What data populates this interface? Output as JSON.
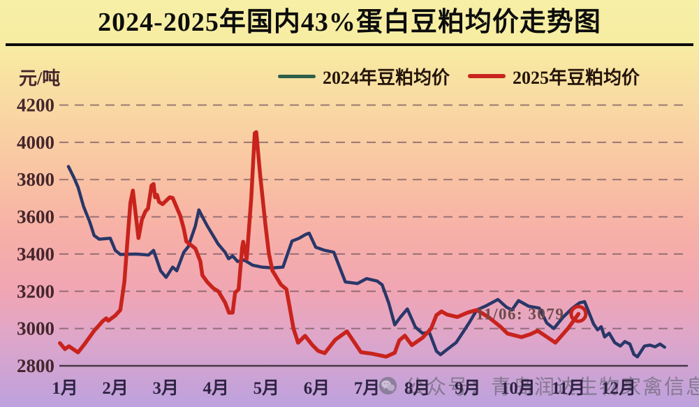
{
  "title": "2024-2025年国内43%蛋白豆粕均价走势图",
  "y_axis_unit": "元/吨",
  "legend": [
    {
      "label": "2024年豆粕均价",
      "color": "#2d5f4b"
    },
    {
      "label": "2025年豆粕均价",
      "color": "#c8231d"
    }
  ],
  "watermark": {
    "icon": "wechat-icon",
    "text": "公众号：青岛润达生物家禽信息"
  },
  "chart_data": {
    "type": "line",
    "title": "2024-2025年国内43%蛋白豆粕均价走势图",
    "ylabel": "元/吨",
    "ylim": [
      2800,
      4200
    ],
    "y_ticks": [
      2800,
      3000,
      3200,
      3400,
      3600,
      3800,
      4000,
      4200
    ],
    "categories": [
      "1月",
      "2月",
      "3月",
      "4月",
      "5月",
      "6月",
      "7月",
      "8月",
      "9月",
      "10月",
      "11月",
      "12月"
    ],
    "x_unit": "month index (1 = Jan 1, 13 = Dec 31)",
    "grid": "horizontal dashed",
    "legend_position": "top",
    "annotation": {
      "text": "11/06: 3079",
      "date": "11/06",
      "value": 3079
    },
    "series": [
      {
        "name": "2024年豆粕均价",
        "color": "#293768",
        "points": [
          [
            1.07,
            3870
          ],
          [
            1.17,
            3815
          ],
          [
            1.26,
            3760
          ],
          [
            1.37,
            3655
          ],
          [
            1.49,
            3575
          ],
          [
            1.58,
            3500
          ],
          [
            1.68,
            3480
          ],
          [
            1.9,
            3485
          ],
          [
            2.0,
            3420
          ],
          [
            2.1,
            3398
          ],
          [
            2.41,
            3400
          ],
          [
            2.66,
            3395
          ],
          [
            2.76,
            3420
          ],
          [
            2.9,
            3310
          ],
          [
            3.01,
            3275
          ],
          [
            3.14,
            3330
          ],
          [
            3.22,
            3310
          ],
          [
            3.36,
            3410
          ],
          [
            3.45,
            3440
          ],
          [
            3.59,
            3550
          ],
          [
            3.66,
            3637
          ],
          [
            3.76,
            3585
          ],
          [
            3.83,
            3550
          ],
          [
            3.97,
            3487
          ],
          [
            4.04,
            3455
          ],
          [
            4.18,
            3410
          ],
          [
            4.25,
            3375
          ],
          [
            4.33,
            3390
          ],
          [
            4.43,
            3360
          ],
          [
            4.56,
            3368
          ],
          [
            4.73,
            3340
          ],
          [
            4.91,
            3330
          ],
          [
            5.12,
            3326
          ],
          [
            5.33,
            3330
          ],
          [
            5.51,
            3470
          ],
          [
            5.65,
            3485
          ],
          [
            5.78,
            3505
          ],
          [
            5.85,
            3512
          ],
          [
            5.98,
            3437
          ],
          [
            6.16,
            3420
          ],
          [
            6.34,
            3410
          ],
          [
            6.57,
            3250
          ],
          [
            6.81,
            3242
          ],
          [
            6.99,
            3268
          ],
          [
            7.2,
            3255
          ],
          [
            7.3,
            3235
          ],
          [
            7.43,
            3138
          ],
          [
            7.55,
            3020
          ],
          [
            7.66,
            3060
          ],
          [
            7.8,
            3105
          ],
          [
            7.96,
            3008
          ],
          [
            8.1,
            2975
          ],
          [
            8.24,
            2978
          ],
          [
            8.38,
            2878
          ],
          [
            8.46,
            2860
          ],
          [
            8.6,
            2890
          ],
          [
            8.77,
            2925
          ],
          [
            8.93,
            2990
          ],
          [
            9.04,
            3036
          ],
          [
            9.18,
            3100
          ],
          [
            9.35,
            3120
          ],
          [
            9.6,
            3156
          ],
          [
            9.77,
            3115
          ],
          [
            9.88,
            3100
          ],
          [
            10.01,
            3150
          ],
          [
            10.21,
            3120
          ],
          [
            10.42,
            3110
          ],
          [
            10.57,
            3030
          ],
          [
            10.71,
            3000
          ],
          [
            10.89,
            3060
          ],
          [
            11.08,
            3110
          ],
          [
            11.22,
            3138
          ],
          [
            11.32,
            3145
          ],
          [
            11.5,
            3025
          ],
          [
            11.58,
            2993
          ],
          [
            11.65,
            3010
          ],
          [
            11.72,
            2955
          ],
          [
            11.81,
            2975
          ],
          [
            11.92,
            2925
          ],
          [
            12.03,
            2906
          ],
          [
            12.12,
            2930
          ],
          [
            12.22,
            2917
          ],
          [
            12.3,
            2862
          ],
          [
            12.37,
            2848
          ],
          [
            12.51,
            2906
          ],
          [
            12.62,
            2911
          ],
          [
            12.72,
            2902
          ],
          [
            12.82,
            2917
          ],
          [
            12.91,
            2900
          ]
        ]
      },
      {
        "name": "2025年豆粕均价",
        "color": "#c8231d",
        "points": [
          [
            0.9,
            2922
          ],
          [
            1.0,
            2890
          ],
          [
            1.08,
            2905
          ],
          [
            1.26,
            2872
          ],
          [
            1.4,
            2920
          ],
          [
            1.58,
            2988
          ],
          [
            1.75,
            3040
          ],
          [
            1.82,
            3055
          ],
          [
            1.86,
            3042
          ],
          [
            2.0,
            3070
          ],
          [
            2.1,
            3100
          ],
          [
            2.18,
            3250
          ],
          [
            2.25,
            3500
          ],
          [
            2.3,
            3674
          ],
          [
            2.35,
            3741
          ],
          [
            2.39,
            3649
          ],
          [
            2.46,
            3486
          ],
          [
            2.53,
            3586
          ],
          [
            2.6,
            3630
          ],
          [
            2.65,
            3645
          ],
          [
            2.72,
            3768
          ],
          [
            2.76,
            3776
          ],
          [
            2.79,
            3705
          ],
          [
            2.83,
            3718
          ],
          [
            2.87,
            3680
          ],
          [
            2.94,
            3668
          ],
          [
            3.08,
            3705
          ],
          [
            3.14,
            3701
          ],
          [
            3.29,
            3606
          ],
          [
            3.36,
            3536
          ],
          [
            3.41,
            3468
          ],
          [
            3.5,
            3449
          ],
          [
            3.59,
            3430
          ],
          [
            3.69,
            3361
          ],
          [
            3.73,
            3286
          ],
          [
            3.83,
            3249
          ],
          [
            3.94,
            3218
          ],
          [
            4.05,
            3199
          ],
          [
            4.18,
            3140
          ],
          [
            4.26,
            3085
          ],
          [
            4.33,
            3086
          ],
          [
            4.38,
            3193
          ],
          [
            4.45,
            3211
          ],
          [
            4.52,
            3436
          ],
          [
            4.54,
            3466
          ],
          [
            4.61,
            3374
          ],
          [
            4.7,
            3700
          ],
          [
            4.77,
            4049
          ],
          [
            4.8,
            4055
          ],
          [
            4.88,
            3819
          ],
          [
            4.98,
            3561
          ],
          [
            5.05,
            3404
          ],
          [
            5.12,
            3311
          ],
          [
            5.29,
            3236
          ],
          [
            5.4,
            3211
          ],
          [
            5.54,
            3000
          ],
          [
            5.63,
            2924
          ],
          [
            5.77,
            2961
          ],
          [
            5.91,
            2913
          ],
          [
            6.03,
            2880
          ],
          [
            6.16,
            2868
          ],
          [
            6.37,
            2940
          ],
          [
            6.6,
            2985
          ],
          [
            6.88,
            2873
          ],
          [
            7.1,
            2865
          ],
          [
            7.38,
            2849
          ],
          [
            7.55,
            2870
          ],
          [
            7.64,
            2936
          ],
          [
            7.75,
            2962
          ],
          [
            7.89,
            2911
          ],
          [
            8.1,
            2950
          ],
          [
            8.27,
            2999
          ],
          [
            8.38,
            3073
          ],
          [
            8.48,
            3092
          ],
          [
            8.59,
            3075
          ],
          [
            8.79,
            3062
          ],
          [
            9.0,
            3086
          ],
          [
            9.18,
            3100
          ],
          [
            9.42,
            3060
          ],
          [
            9.65,
            3010
          ],
          [
            9.79,
            2973
          ],
          [
            10.07,
            2954
          ],
          [
            10.25,
            2970
          ],
          [
            10.39,
            2988
          ],
          [
            10.6,
            2950
          ],
          [
            10.74,
            2924
          ],
          [
            10.99,
            3000
          ],
          [
            11.12,
            3049
          ],
          [
            11.2,
            3079
          ]
        ],
        "end_marker": {
          "month": 11.2,
          "value": 3079,
          "style": "open-circle"
        }
      }
    ]
  }
}
